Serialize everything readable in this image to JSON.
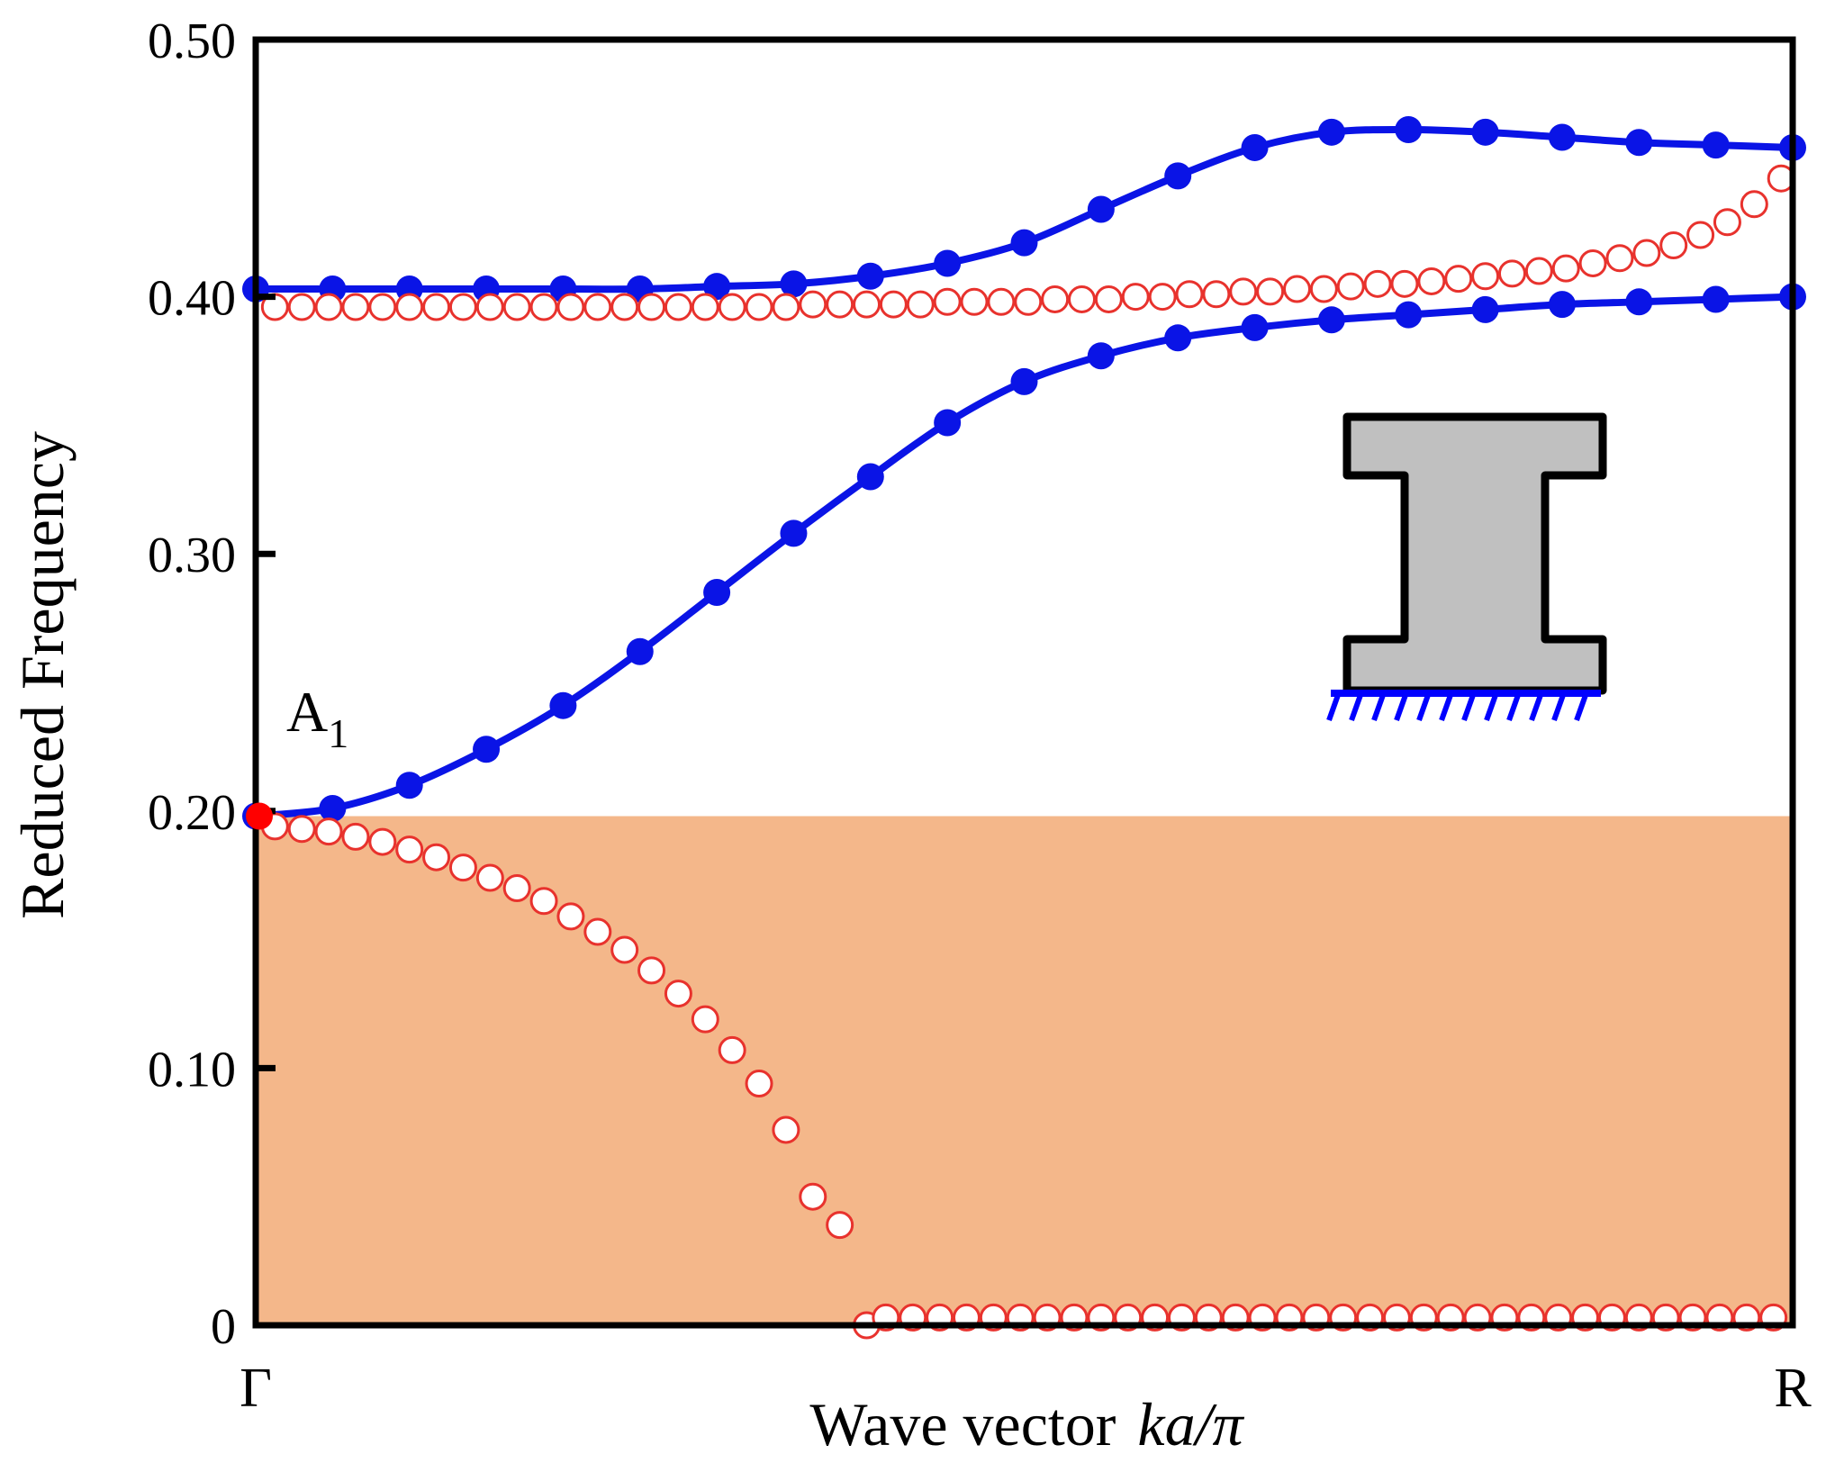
{
  "chart_data": {
    "type": "line",
    "title": "",
    "xlabel_prefix": "Wave vector",
    "xlabel_math": "ka/π",
    "ylabel": "Reduced Frequency",
    "x_ticks": [
      "Γ",
      "R"
    ],
    "xlim": [
      0,
      1
    ],
    "ylim": [
      0,
      0.5
    ],
    "y_ticks": [
      {
        "value": 0.0,
        "label": "0"
      },
      {
        "value": 0.1,
        "label": "0.10"
      },
      {
        "value": 0.2,
        "label": "0.20"
      },
      {
        "value": 0.3,
        "label": "0.30"
      },
      {
        "value": 0.4,
        "label": "0.40"
      },
      {
        "value": 0.5,
        "label": "0.50"
      }
    ],
    "shaded_region": {
      "y0": 0.0,
      "y1": 0.198,
      "color": "#f4b78a"
    },
    "annotation": {
      "base": "A",
      "sub": "1",
      "x": 0.0,
      "y": 0.198,
      "marker_color": "#ff0000"
    },
    "inset": {
      "description": "I-shaped cross-section fixed at base",
      "fill": "#c0c0c0",
      "support_color": "#0000ff"
    },
    "colors": {
      "blue": "#0a14e6",
      "red": "#e8322d"
    },
    "series": [
      {
        "name": "upper-band-blue",
        "style": "line-filled",
        "color": "#0a14e6",
        "x": [
          0,
          0.05,
          0.1,
          0.15,
          0.2,
          0.25,
          0.3,
          0.35,
          0.4,
          0.45,
          0.5,
          0.55,
          0.6,
          0.65,
          0.7,
          0.75,
          0.8,
          0.85,
          0.9,
          0.95,
          1.0
        ],
        "y": [
          0.403,
          0.403,
          0.403,
          0.403,
          0.403,
          0.403,
          0.404,
          0.405,
          0.408,
          0.413,
          0.421,
          0.434,
          0.447,
          0.458,
          0.464,
          0.465,
          0.464,
          0.462,
          0.46,
          0.459,
          0.458
        ]
      },
      {
        "name": "middle-band-blue",
        "style": "line-filled",
        "color": "#0a14e6",
        "x": [
          0,
          0.05,
          0.1,
          0.15,
          0.2,
          0.25,
          0.3,
          0.35,
          0.4,
          0.45,
          0.5,
          0.55,
          0.6,
          0.65,
          0.7,
          0.75,
          0.8,
          0.85,
          0.9,
          0.95,
          1.0
        ],
        "y": [
          0.198,
          0.201,
          0.21,
          0.224,
          0.241,
          0.262,
          0.285,
          0.308,
          0.33,
          0.351,
          0.367,
          0.377,
          0.384,
          0.388,
          0.391,
          0.393,
          0.395,
          0.397,
          0.398,
          0.399,
          0.4
        ]
      },
      {
        "name": "upper-band-red-open",
        "style": "open-circles",
        "color": "#e8322d",
        "x": [
          0.0125,
          0.03,
          0.0475,
          0.065,
          0.0825,
          0.1,
          0.1175,
          0.135,
          0.1525,
          0.17,
          0.1875,
          0.205,
          0.2225,
          0.24,
          0.2575,
          0.275,
          0.2925,
          0.31,
          0.3275,
          0.345,
          0.3625,
          0.38,
          0.3975,
          0.415,
          0.4325,
          0.45,
          0.4675,
          0.485,
          0.5025,
          0.52,
          0.5375,
          0.555,
          0.5725,
          0.59,
          0.6075,
          0.625,
          0.6425,
          0.66,
          0.6775,
          0.695,
          0.7125,
          0.73,
          0.7475,
          0.765,
          0.7825,
          0.8,
          0.8175,
          0.835,
          0.8525,
          0.87,
          0.8875,
          0.905,
          0.9225,
          0.94,
          0.9575,
          0.975,
          0.9925
        ],
        "y": [
          0.396,
          0.396,
          0.396,
          0.396,
          0.396,
          0.396,
          0.396,
          0.396,
          0.396,
          0.396,
          0.396,
          0.396,
          0.396,
          0.396,
          0.396,
          0.396,
          0.396,
          0.396,
          0.396,
          0.396,
          0.397,
          0.397,
          0.397,
          0.397,
          0.397,
          0.398,
          0.398,
          0.398,
          0.398,
          0.399,
          0.399,
          0.399,
          0.4,
          0.4,
          0.401,
          0.401,
          0.402,
          0.402,
          0.403,
          0.403,
          0.404,
          0.405,
          0.405,
          0.406,
          0.407,
          0.408,
          0.409,
          0.41,
          0.411,
          0.413,
          0.415,
          0.417,
          0.42,
          0.424,
          0.429,
          0.436,
          0.446
        ]
      },
      {
        "name": "lower-band-red-open",
        "style": "open-circles",
        "color": "#e8322d",
        "x": [
          0.0125,
          0.03,
          0.0475,
          0.065,
          0.0825,
          0.1,
          0.1175,
          0.135,
          0.1525,
          0.17,
          0.1875,
          0.205,
          0.2225,
          0.24,
          0.2575,
          0.275,
          0.2925,
          0.31,
          0.3275,
          0.345,
          0.3625,
          0.38,
          0.3975
        ],
        "y": [
          0.194,
          0.193,
          0.192,
          0.19,
          0.188,
          0.185,
          0.182,
          0.178,
          0.174,
          0.17,
          0.165,
          0.159,
          0.153,
          0.146,
          0.138,
          0.129,
          0.119,
          0.107,
          0.094,
          0.076,
          0.05,
          0.039,
          0.0
        ]
      },
      {
        "name": "zero-band-red-open",
        "style": "open-circles",
        "color": "#e8322d",
        "x": [
          0.41,
          0.4275,
          0.445,
          0.4625,
          0.48,
          0.4975,
          0.515,
          0.5325,
          0.55,
          0.5675,
          0.585,
          0.6025,
          0.62,
          0.6375,
          0.655,
          0.6725,
          0.69,
          0.7075,
          0.725,
          0.7425,
          0.76,
          0.7775,
          0.795,
          0.8125,
          0.83,
          0.8475,
          0.865,
          0.8825,
          0.9,
          0.9175,
          0.935,
          0.9525,
          0.97,
          0.9875
        ],
        "y": [
          0.003,
          0.003,
          0.003,
          0.003,
          0.003,
          0.003,
          0.003,
          0.003,
          0.003,
          0.003,
          0.003,
          0.003,
          0.003,
          0.003,
          0.003,
          0.003,
          0.003,
          0.003,
          0.003,
          0.003,
          0.003,
          0.003,
          0.003,
          0.003,
          0.003,
          0.003,
          0.003,
          0.003,
          0.003,
          0.003,
          0.003,
          0.003,
          0.003,
          0.003
        ]
      }
    ]
  }
}
